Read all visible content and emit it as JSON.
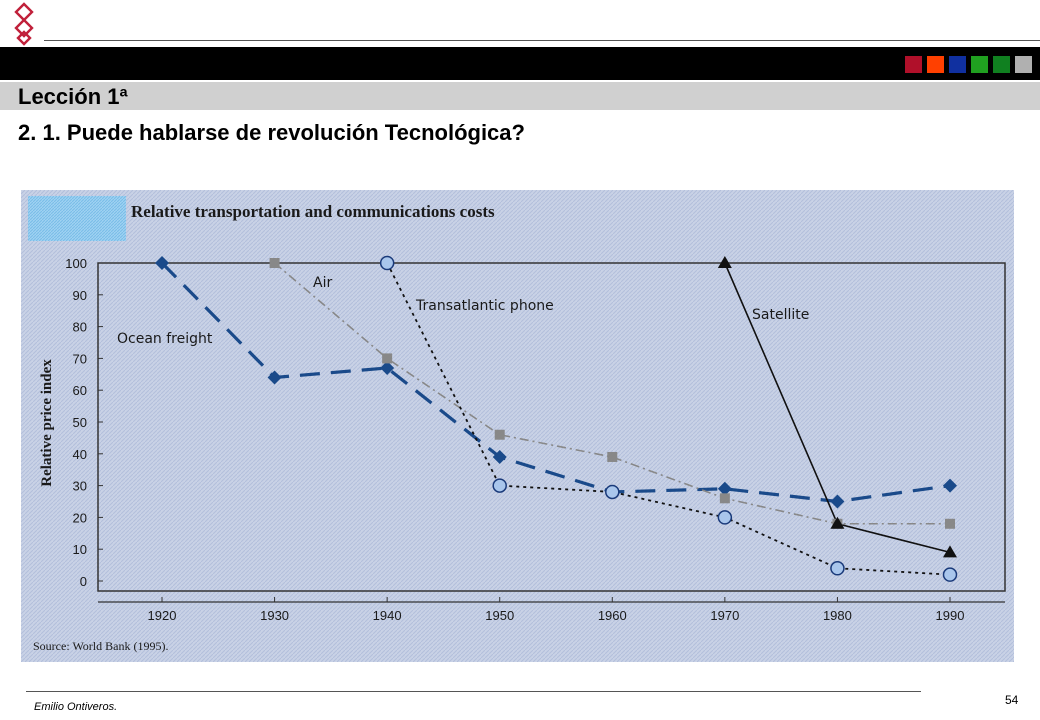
{
  "header": {
    "lesson": "Lección 1ª",
    "subtitle": "2. 1. Puede hablarse de revolución Tecnológica?",
    "accent_squares": [
      "#b0102a",
      "#ff4000",
      "#1030a0",
      "#20a020",
      "#108020",
      "#b0b0b0"
    ]
  },
  "figure": {
    "source": "Source: World Bank (1995)."
  },
  "chart_data": {
    "type": "line",
    "title": "Relative transportation and communications costs",
    "xlabel": "",
    "ylabel": "Relative price index",
    "categories": [
      1920,
      1930,
      1940,
      1950,
      1960,
      1970,
      1980,
      1990
    ],
    "xlim": [
      1920,
      1990
    ],
    "ylim": [
      0,
      100
    ],
    "yticks": [
      0,
      10,
      20,
      30,
      40,
      50,
      60,
      70,
      80,
      90,
      100
    ],
    "series": [
      {
        "name": "Ocean freight",
        "color": "#1a4a8a",
        "marker": "diamond",
        "line": "long-dash",
        "points": [
          [
            1920,
            100
          ],
          [
            1930,
            64
          ],
          [
            1940,
            67
          ],
          [
            1950,
            39
          ],
          [
            1960,
            28
          ],
          [
            1970,
            29
          ],
          [
            1980,
            25
          ],
          [
            1990,
            30
          ]
        ]
      },
      {
        "name": "Air",
        "color": "#888888",
        "marker": "square",
        "line": "dash-dot",
        "points": [
          [
            1930,
            100
          ],
          [
            1940,
            70
          ],
          [
            1950,
            46
          ],
          [
            1960,
            39
          ],
          [
            1970,
            26
          ],
          [
            1980,
            18
          ],
          [
            1990,
            18
          ]
        ]
      },
      {
        "name": "Transatlantic phone",
        "color": "#111111",
        "marker": "circle",
        "line": "dotted",
        "points": [
          [
            1940,
            100
          ],
          [
            1950,
            30
          ],
          [
            1960,
            28
          ],
          [
            1970,
            20
          ],
          [
            1980,
            4
          ],
          [
            1990,
            2
          ]
        ]
      },
      {
        "name": "Satellite",
        "color": "#111111",
        "marker": "triangle",
        "line": "solid",
        "points": [
          [
            1970,
            100
          ],
          [
            1980,
            18
          ],
          [
            1990,
            9
          ]
        ]
      }
    ]
  },
  "footer": {
    "author": "Emilio Ontiveros.",
    "page": "54"
  }
}
